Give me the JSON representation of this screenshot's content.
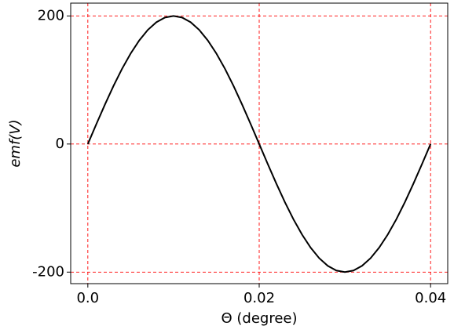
{
  "chart_data": {
    "type": "line",
    "xlabel": "Θ (degree)",
    "ylabel": "emf(V)",
    "x": [
      0,
      0.001,
      0.002,
      0.003,
      0.004,
      0.005,
      0.006,
      0.007,
      0.008,
      0.009,
      0.01,
      0.011,
      0.012,
      0.013,
      0.014,
      0.015,
      0.016,
      0.017,
      0.018,
      0.019,
      0.02,
      0.021,
      0.022,
      0.023,
      0.024,
      0.025,
      0.026,
      0.027,
      0.028,
      0.029,
      0.03,
      0.031,
      0.032,
      0.033,
      0.034,
      0.035,
      0.036,
      0.037,
      0.038,
      0.039,
      0.04
    ],
    "series": [
      {
        "color": "#000000",
        "values": [
          0,
          31.3,
          61.8,
          90.8,
          117.6,
          141.4,
          161.8,
          178.2,
          190.2,
          197.5,
          200,
          197.5,
          190.2,
          178.2,
          161.8,
          141.4,
          117.6,
          90.8,
          61.8,
          31.3,
          0,
          -31.3,
          -61.8,
          -90.8,
          -117.6,
          -141.4,
          -161.8,
          -178.2,
          -190.2,
          -197.5,
          -200,
          -197.5,
          -190.2,
          -178.2,
          -161.8,
          -141.4,
          -117.6,
          -90.8,
          -61.8,
          -31.3,
          0
        ]
      }
    ],
    "xlim": [
      -0.002,
      0.042
    ],
    "ylim": [
      -218,
      220
    ],
    "xticks": [
      {
        "value": 0,
        "label": "0.0"
      },
      0.02,
      0.04
    ],
    "yticks": [
      -200,
      0,
      200
    ],
    "grid": true,
    "grid_color": "#ff0000"
  }
}
